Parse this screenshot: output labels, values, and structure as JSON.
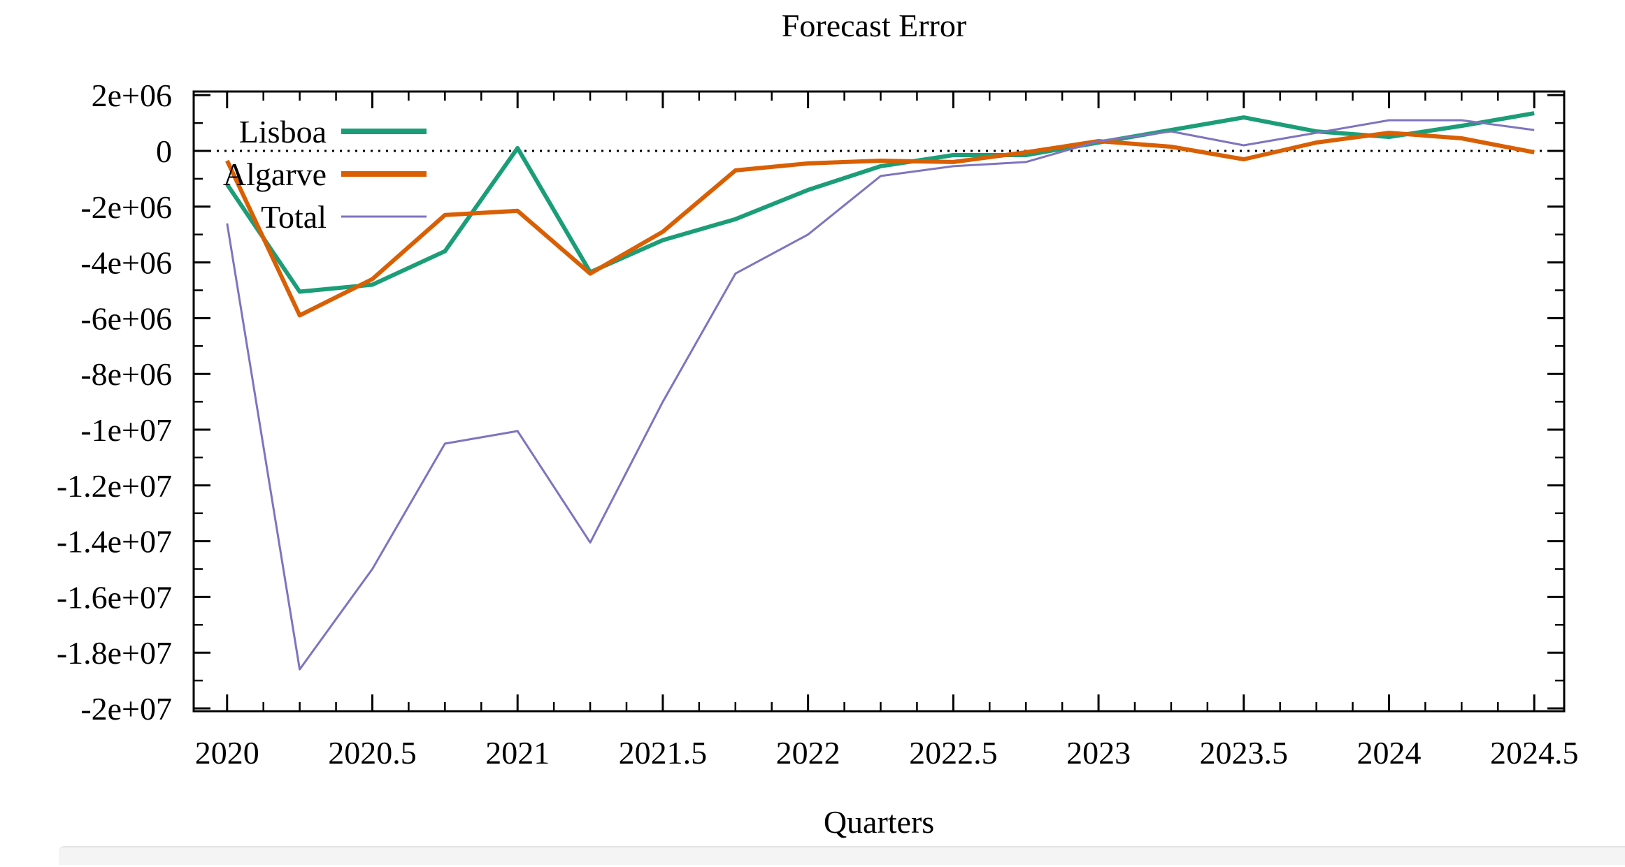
{
  "page": {
    "background": "#ffffff",
    "axis_color": "#000000"
  },
  "chart_data": {
    "type": "line",
    "title": "Forecast Error",
    "xlabel": "Quarters",
    "ylabel": "",
    "x": [
      2020,
      2020.25,
      2020.5,
      2020.75,
      2021,
      2021.25,
      2021.5,
      2021.75,
      2022,
      2022.25,
      2022.5,
      2022.75,
      2023,
      2023.25,
      2023.5,
      2023.75,
      2024,
      2024.25,
      2024.5
    ],
    "series": [
      {
        "name": "Lisboa",
        "color": "#1b9e77",
        "width": 6,
        "values": [
          -1200000,
          -5050000,
          -4800000,
          -3600000,
          100000,
          -4350000,
          -3200000,
          -2450000,
          -1400000,
          -550000,
          -150000,
          -150000,
          300000,
          750000,
          1200000,
          700000,
          500000,
          900000,
          1350000
        ]
      },
      {
        "name": "Algarve",
        "color": "#d95f02",
        "width": 6,
        "values": [
          -350000,
          -5900000,
          -4600000,
          -2300000,
          -2150000,
          -4400000,
          -2900000,
          -700000,
          -450000,
          -350000,
          -400000,
          -50000,
          350000,
          150000,
          -300000,
          300000,
          650000,
          450000,
          -50000
        ]
      },
      {
        "name": "Total",
        "color": "#7e74bf",
        "width": 3,
        "values": [
          -2600000,
          -18600000,
          -15000000,
          -10500000,
          -10050000,
          -14050000,
          -9000000,
          -4400000,
          -3000000,
          -900000,
          -550000,
          -400000,
          350000,
          700000,
          200000,
          650000,
          1100000,
          1100000,
          750000
        ]
      }
    ],
    "x_ticks": {
      "values": [
        2020,
        2020.5,
        2021,
        2021.5,
        2022,
        2022.5,
        2023,
        2023.5,
        2024,
        2024.5
      ],
      "labels": [
        "2020",
        "2020.5",
        "2021",
        "2021.5",
        "2022",
        "2022.5",
        "2023",
        "2023.5",
        "2024",
        "2024.5"
      ],
      "minor_step": 0.125
    },
    "y_ticks": {
      "values": [
        2000000,
        0,
        -2000000,
        -4000000,
        -6000000,
        -8000000,
        -10000000,
        -12000000,
        -14000000,
        -16000000,
        -18000000,
        -20000000
      ],
      "labels": [
        "2e+06",
        "0",
        "-2e+06",
        "-4e+06",
        "-6e+06",
        "-8e+06",
        "-1e+07",
        "-1.2e+07",
        "-1.4e+07",
        "-1.6e+07",
        "-1.8e+07",
        "-2e+07"
      ],
      "minor_step": 1000000
    },
    "xlim": [
      2019.885,
      2024.603
    ],
    "ylim": [
      -20100000,
      2130000
    ],
    "zero_line": true,
    "grid": false,
    "legend": {
      "position": "top-left",
      "entries": [
        "Lisboa",
        "Algarve",
        "Total"
      ]
    }
  }
}
